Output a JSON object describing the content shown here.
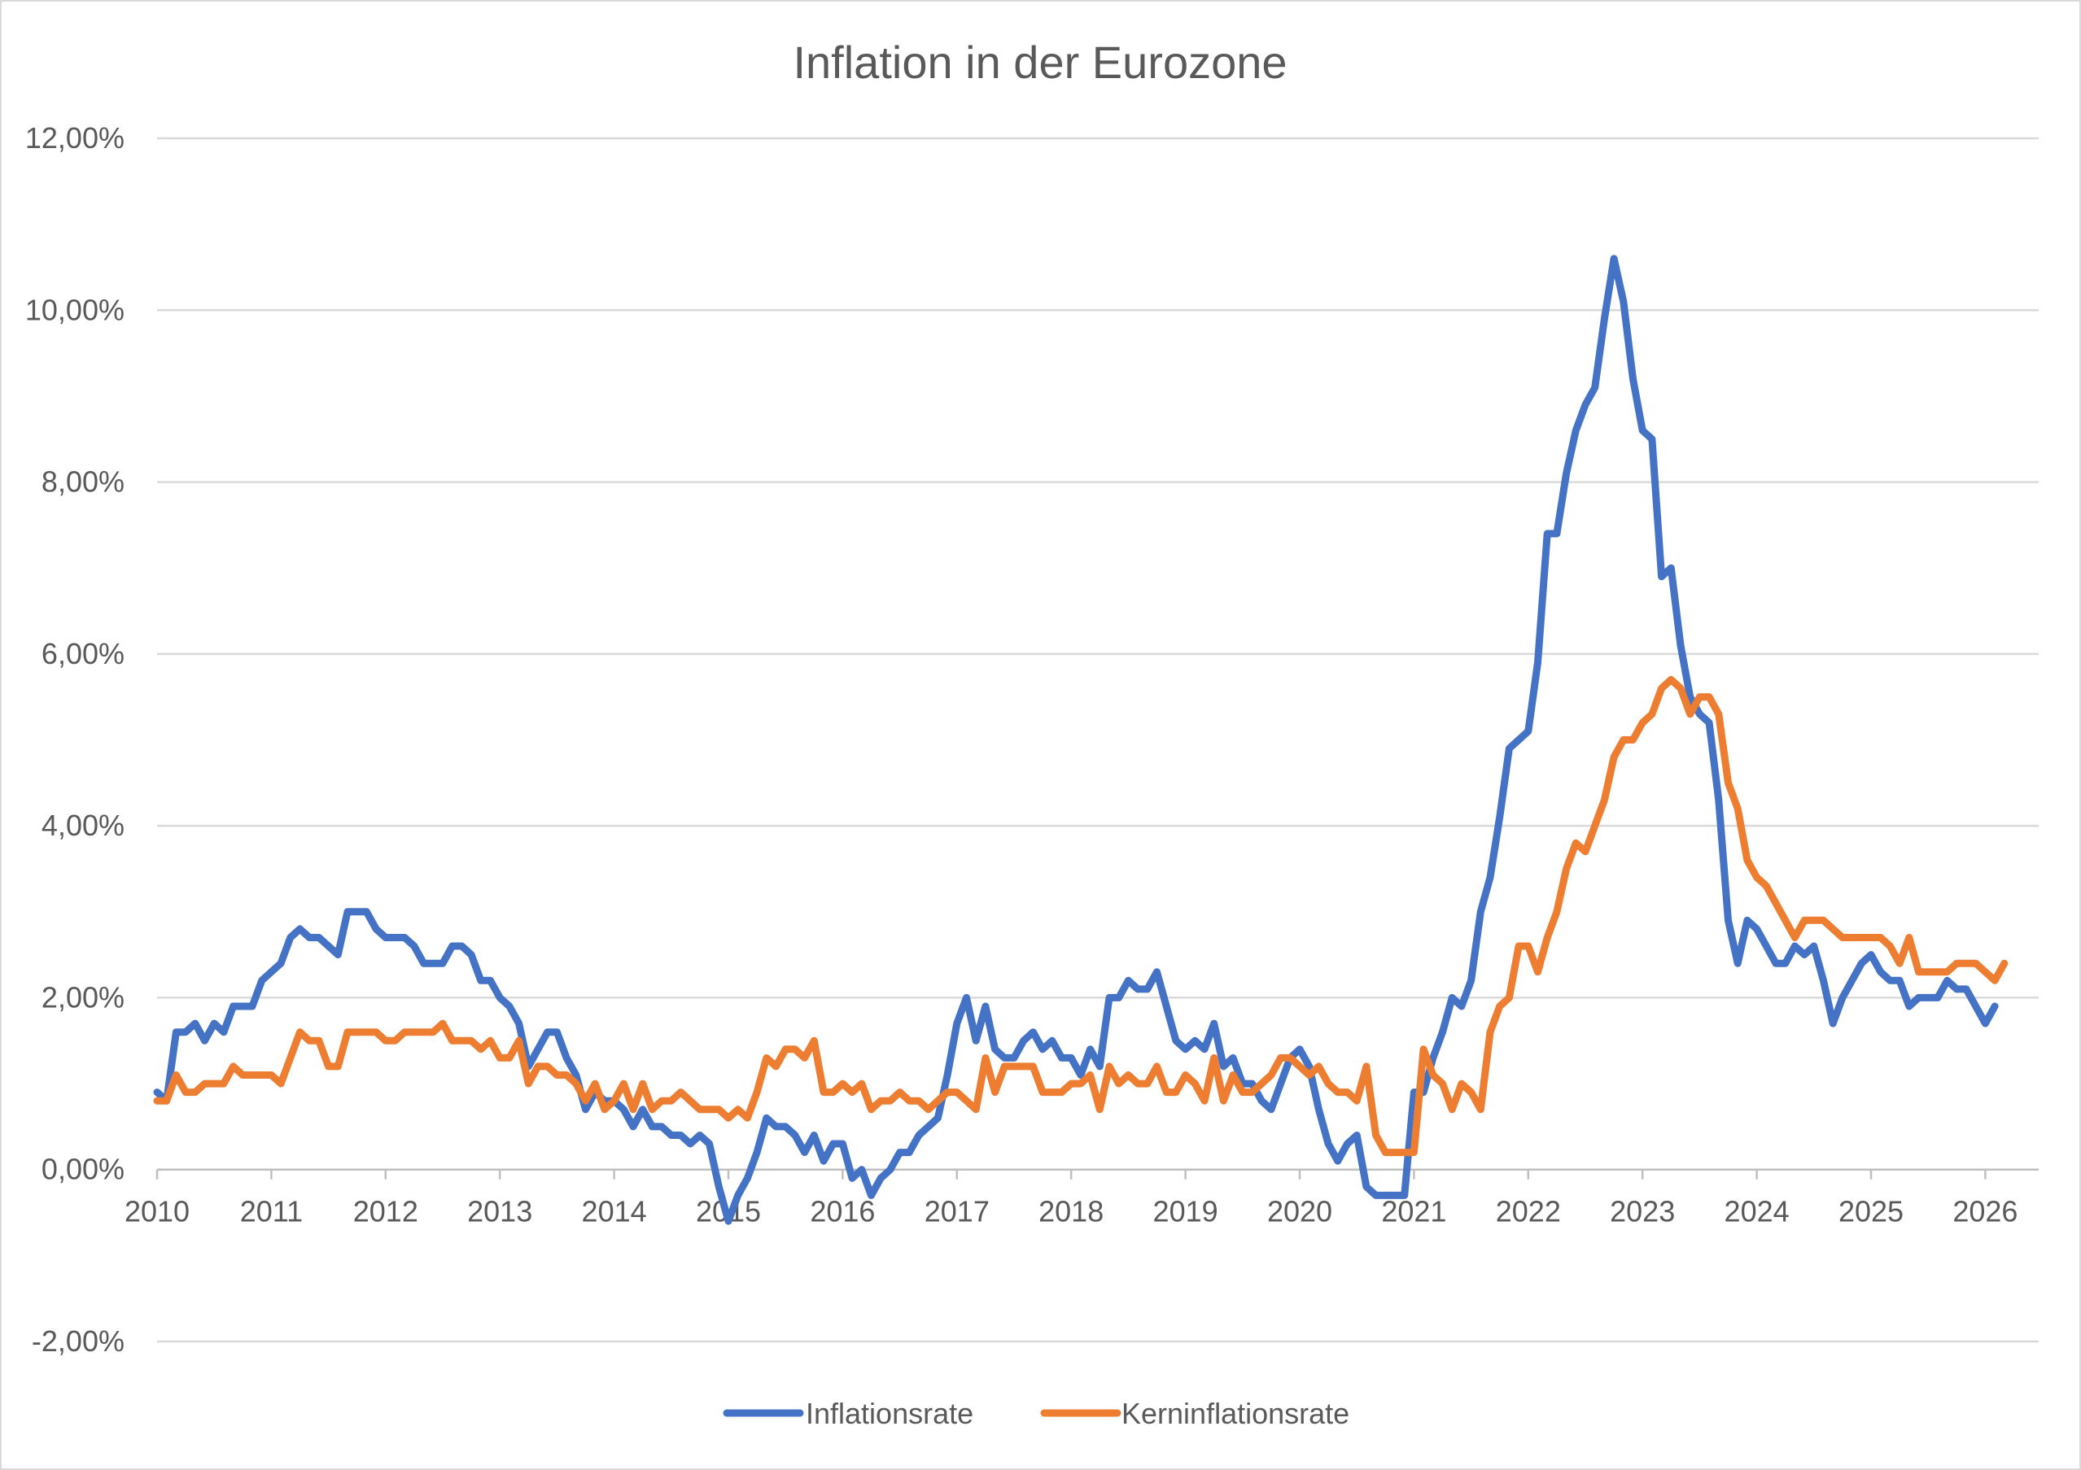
{
  "chart_data": {
    "type": "line",
    "title": "Inflation in der Eurozone",
    "xlabel": "",
    "ylabel": "",
    "ylim": [
      -2,
      12
    ],
    "y_ticks": [
      -2,
      0,
      2,
      4,
      6,
      8,
      10,
      12
    ],
    "y_tick_labels": [
      "-2,00%",
      "0,00%",
      "2,00%",
      "4,00%",
      "6,00%",
      "8,00%",
      "10,00%",
      "12,00%"
    ],
    "x_ticks": [
      "2010",
      "2011",
      "2012",
      "2013",
      "2014",
      "2015",
      "2016",
      "2017",
      "2018",
      "2019",
      "2020",
      "2021",
      "2022",
      "2023",
      "2024",
      "2025",
      "2026"
    ],
    "start_year": 2010,
    "grid": true,
    "legend_position": "bottom",
    "series": [
      {
        "name": "Inflationsrate",
        "color": "#4472C4",
        "values": [
          0.9,
          0.8,
          1.6,
          1.6,
          1.7,
          1.5,
          1.7,
          1.6,
          1.9,
          1.9,
          1.9,
          2.2,
          2.3,
          2.4,
          2.7,
          2.8,
          2.7,
          2.7,
          2.6,
          2.5,
          3.0,
          3.0,
          3.0,
          2.8,
          2.7,
          2.7,
          2.7,
          2.6,
          2.4,
          2.4,
          2.4,
          2.6,
          2.6,
          2.5,
          2.2,
          2.2,
          2.0,
          1.9,
          1.7,
          1.2,
          1.4,
          1.6,
          1.6,
          1.3,
          1.1,
          0.7,
          0.9,
          0.8,
          0.8,
          0.7,
          0.5,
          0.7,
          0.5,
          0.5,
          0.4,
          0.4,
          0.3,
          0.4,
          0.3,
          -0.2,
          -0.6,
          -0.3,
          -0.1,
          0.2,
          0.6,
          0.5,
          0.5,
          0.4,
          0.2,
          0.4,
          0.1,
          0.3,
          0.3,
          -0.1,
          0.0,
          -0.3,
          -0.1,
          0.0,
          0.2,
          0.2,
          0.4,
          0.5,
          0.6,
          1.1,
          1.7,
          2.0,
          1.5,
          1.9,
          1.4,
          1.3,
          1.3,
          1.5,
          1.6,
          1.4,
          1.5,
          1.3,
          1.3,
          1.1,
          1.4,
          1.2,
          2.0,
          2.0,
          2.2,
          2.1,
          2.1,
          2.3,
          1.9,
          1.5,
          1.4,
          1.5,
          1.4,
          1.7,
          1.2,
          1.3,
          1.0,
          1.0,
          0.8,
          0.7,
          1.0,
          1.3,
          1.4,
          1.2,
          0.7,
          0.3,
          0.1,
          0.3,
          0.4,
          -0.2,
          -0.3,
          -0.3,
          -0.3,
          -0.3,
          0.9,
          0.9,
          1.3,
          1.6,
          2.0,
          1.9,
          2.2,
          3.0,
          3.4,
          4.1,
          4.9,
          5.0,
          5.1,
          5.9,
          7.4,
          7.4,
          8.1,
          8.6,
          8.9,
          9.1,
          9.9,
          10.6,
          10.1,
          9.2,
          8.6,
          8.5,
          6.9,
          7.0,
          6.1,
          5.5,
          5.3,
          5.2,
          4.3,
          2.9,
          2.4,
          2.9,
          2.8,
          2.6,
          2.4,
          2.4,
          2.6,
          2.5,
          2.6,
          2.2,
          1.7,
          2.0,
          2.2,
          2.4,
          2.5,
          2.3,
          2.2,
          2.2,
          1.9,
          2.0,
          2.0,
          2.0,
          2.2,
          2.1,
          2.1,
          1.9,
          1.7,
          1.9
        ]
      },
      {
        "name": "Kerninflationsrate",
        "color": "#ED7D31",
        "values": [
          0.8,
          0.8,
          1.1,
          0.9,
          0.9,
          1.0,
          1.0,
          1.0,
          1.2,
          1.1,
          1.1,
          1.1,
          1.1,
          1.0,
          1.3,
          1.6,
          1.5,
          1.5,
          1.2,
          1.2,
          1.6,
          1.6,
          1.6,
          1.6,
          1.5,
          1.5,
          1.6,
          1.6,
          1.6,
          1.6,
          1.7,
          1.5,
          1.5,
          1.5,
          1.4,
          1.5,
          1.3,
          1.3,
          1.5,
          1.0,
          1.2,
          1.2,
          1.1,
          1.1,
          1.0,
          0.8,
          1.0,
          0.7,
          0.8,
          1.0,
          0.7,
          1.0,
          0.7,
          0.8,
          0.8,
          0.9,
          0.8,
          0.7,
          0.7,
          0.7,
          0.6,
          0.7,
          0.6,
          0.9,
          1.3,
          1.2,
          1.4,
          1.4,
          1.3,
          1.5,
          0.9,
          0.9,
          1.0,
          0.9,
          1.0,
          0.7,
          0.8,
          0.8,
          0.9,
          0.8,
          0.8,
          0.7,
          0.8,
          0.9,
          0.9,
          0.8,
          0.7,
          1.3,
          0.9,
          1.2,
          1.2,
          1.2,
          1.2,
          0.9,
          0.9,
          0.9,
          1.0,
          1.0,
          1.1,
          0.7,
          1.2,
          1.0,
          1.1,
          1.0,
          1.0,
          1.2,
          0.9,
          0.9,
          1.1,
          1.0,
          0.8,
          1.3,
          0.8,
          1.1,
          0.9,
          0.9,
          1.0,
          1.1,
          1.3,
          1.3,
          1.2,
          1.1,
          1.2,
          1.0,
          0.9,
          0.9,
          0.8,
          1.2,
          0.4,
          0.2,
          0.2,
          0.2,
          0.2,
          1.4,
          1.1,
          1.0,
          0.7,
          1.0,
          0.9,
          0.7,
          1.6,
          1.9,
          2.0,
          2.6,
          2.6,
          2.3,
          2.7,
          3.0,
          3.5,
          3.8,
          3.7,
          4.0,
          4.3,
          4.8,
          5.0,
          5.0,
          5.2,
          5.3,
          5.6,
          5.7,
          5.6,
          5.3,
          5.5,
          5.5,
          5.3,
          4.5,
          4.2,
          3.6,
          3.4,
          3.3,
          3.1,
          2.9,
          2.7,
          2.9,
          2.9,
          2.9,
          2.8,
          2.7,
          2.7,
          2.7,
          2.7,
          2.7,
          2.6,
          2.4,
          2.7,
          2.3,
          2.3,
          2.3,
          2.3,
          2.4,
          2.4,
          2.4,
          2.3,
          2.2,
          2.4
        ]
      }
    ]
  }
}
